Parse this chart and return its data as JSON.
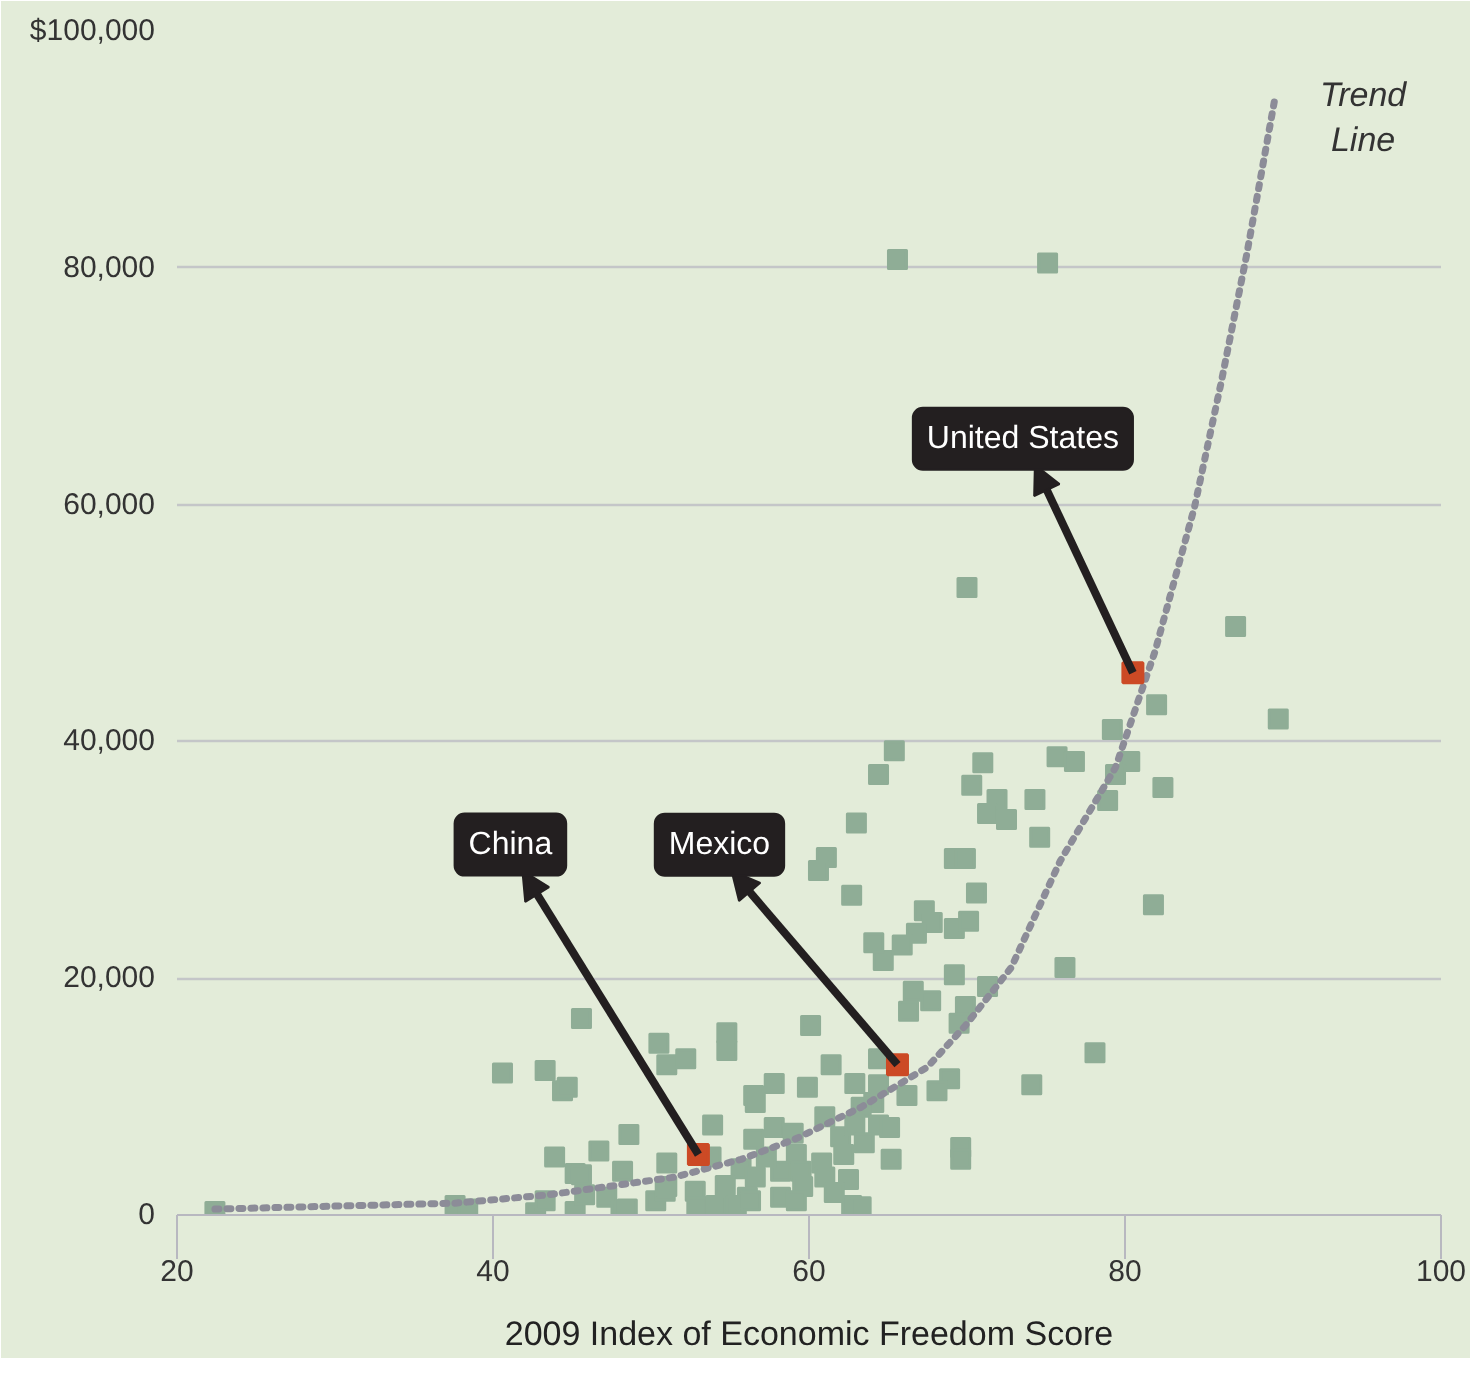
{
  "chart_data": {
    "type": "scatter",
    "xlabel": "2009 Index of Economic Freedom Score",
    "xlim": [
      20,
      100
    ],
    "ylim": [
      0,
      100000
    ],
    "xticks": [
      20,
      40,
      60,
      80,
      100
    ],
    "yticks": [
      {
        "value": 0,
        "label": "0"
      },
      {
        "value": 20000,
        "label": "20,000"
      },
      {
        "value": 40000,
        "label": "40,000"
      },
      {
        "value": 60000,
        "label": "60,000"
      },
      {
        "value": 80000,
        "label": "80,000"
      },
      {
        "value": 100000,
        "label": "$100,000"
      }
    ],
    "grid": "y",
    "marker": "square",
    "series": [
      {
        "color": "#8fad96",
        "x": [
          22.4,
          45.6,
          50.5,
          51.0,
          40.6,
          43.3,
          44.4,
          44.7,
          48.6,
          46.7,
          43.9,
          45.2,
          48.2,
          51.0,
          45.6,
          37.6,
          38.4,
          42.7,
          43.3,
          45.2,
          45.8,
          47.2,
          48.1,
          48.5,
          50.3,
          50.9,
          64.7,
          69.2,
          76.2,
          66.6,
          67.7,
          71.3,
          66.3,
          69.9,
          69.5,
          78.1,
          74.1,
          68.9,
          68.1,
          66.2,
          64.4,
          62.9,
          64.4,
          64.1,
          63.3,
          61.4,
          60.1,
          59.9,
          57.8,
          54.8,
          54.8,
          52.2,
          56.5,
          56.6,
          53.9,
          61.0,
          62.0,
          62.9,
          64.4,
          65.1,
          63.5,
          65.2,
          69.6,
          69.6,
          62.2,
          62.5,
          57.8,
          59.0,
          56.5,
          59.2,
          58.2,
          59.5,
          60.8,
          61.0,
          59.6,
          61.6,
          57.3,
          55.7,
          56.6,
          58.2,
          59.2,
          62.7,
          63.3,
          51.0,
          52.8,
          53.8,
          54.7,
          56.1,
          52.9,
          54.1,
          55.4,
          56.3,
          65.4,
          64.4,
          71.0,
          70.3,
          75.7,
          76.8,
          71.9,
          71.3,
          72.5,
          74.3,
          74.6,
          79.2,
          80.3,
          79.4,
          78.9,
          82.0,
          82.4,
          81.8,
          63.0,
          61.1,
          60.6,
          62.7,
          69.2,
          69.9,
          70.6,
          67.3,
          67.8,
          66.8,
          65.9,
          64.1,
          69.2,
          70.1,
          87.0,
          89.7,
          65.6,
          75.1,
          70.0
        ],
        "values": [
          300,
          16600,
          14500,
          12700,
          12000,
          12200,
          10500,
          10800,
          6800,
          5400,
          4900,
          3500,
          3700,
          4400,
          3400,
          800,
          500,
          200,
          1200,
          300,
          1700,
          1500,
          300,
          500,
          1200,
          2000,
          21500,
          20300,
          20900,
          18900,
          18100,
          19300,
          17200,
          17600,
          16200,
          13700,
          11000,
          11500,
          10500,
          10100,
          13200,
          11100,
          11000,
          9500,
          9100,
          12700,
          16000,
          10800,
          11100,
          15400,
          13900,
          13200,
          10100,
          9500,
          7600,
          8300,
          6600,
          7600,
          7600,
          7400,
          6100,
          4700,
          5700,
          4700,
          5100,
          3000,
          7400,
          6900,
          6400,
          5100,
          3700,
          3700,
          4400,
          3200,
          2400,
          1900,
          4900,
          3900,
          3200,
          1500,
          1200,
          800,
          700,
          2400,
          2000,
          4900,
          2500,
          1500,
          700,
          800,
          800,
          1200,
          39200,
          37200,
          38200,
          36300,
          38700,
          38300,
          35100,
          33900,
          33400,
          35100,
          31900,
          41000,
          38300,
          37200,
          35000,
          43100,
          36100,
          26200,
          33100,
          30200,
          29100,
          27000,
          30100,
          30100,
          27200,
          25700,
          24700,
          23800,
          22800,
          23000,
          24200,
          24800,
          49700,
          41900,
          80700,
          80400,
          53000
        ]
      },
      {
        "color": "#cc4a25",
        "x": [
          53.0,
          65.6,
          80.5
        ],
        "values": [
          5100,
          12700,
          45800
        ]
      },
      {
        "type": "line",
        "marker": "none",
        "line_style": "dotted",
        "color": "#8c8c98",
        "x": [
          22.4,
          37.6,
          43.5,
          51.5,
          55.7,
          59.1,
          63.3,
          67.5,
          69.9,
          72.8,
          75.9,
          79.4,
          81.9,
          84.4,
          86.1,
          87.7,
          89.5
        ],
        "values": [
          500,
          1000,
          1700,
          3200,
          4700,
          6400,
          9100,
          12500,
          16000,
          20900,
          29900,
          37800,
          47600,
          59800,
          70400,
          81100,
          94400
        ]
      }
    ],
    "annotations": [
      "China",
      "Mexico",
      "United States",
      "Trend\nLine"
    ]
  }
}
